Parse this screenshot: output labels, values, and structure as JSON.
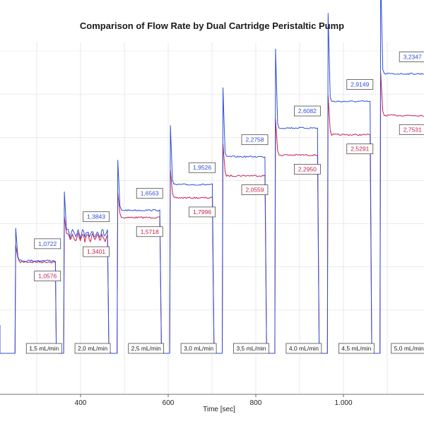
{
  "chart_data": {
    "type": "line",
    "title": "Comparison of Flow Rate by Dual Cartridge Peristaltic Pump",
    "xlabel": "Time [sec]",
    "ylabel": "",
    "x_ticks": [
      {
        "value": 400,
        "label": "400"
      },
      {
        "value": 600,
        "label": "600"
      },
      {
        "value": 800,
        "label": "800"
      },
      {
        "value": 1000,
        "label": "1.000"
      }
    ],
    "xlim": [
      233,
      1190
    ],
    "ylim": [
      0,
      3.75
    ],
    "grid": true,
    "colors": {
      "blue": "#2f4fd8",
      "red": "#c8204a",
      "label_box_border": "#333333"
    },
    "series": [
      {
        "color": "blue",
        "segments": [
          {
            "start": 252,
            "end": 343,
            "value": 1.0722
          },
          {
            "start": 363,
            "end": 463,
            "value": 1.3843
          },
          {
            "start": 485,
            "end": 583,
            "value": 1.6563
          },
          {
            "start": 605,
            "end": 703,
            "value": 1.9526
          },
          {
            "start": 725,
            "end": 823,
            "value": 2.2758
          },
          {
            "start": 845,
            "end": 943,
            "value": 2.6082
          },
          {
            "start": 965,
            "end": 1063,
            "value": 2.9149
          },
          {
            "start": 1085,
            "end": 1190,
            "value": 3.2347
          }
        ]
      },
      {
        "color": "red",
        "segments": [
          {
            "start": 252,
            "end": 343,
            "value": 1.0576
          },
          {
            "start": 363,
            "end": 463,
            "value": 1.3401
          },
          {
            "start": 485,
            "end": 583,
            "value": 1.5718
          },
          {
            "start": 605,
            "end": 703,
            "value": 1.7996
          },
          {
            "start": 725,
            "end": 823,
            "value": 2.0559
          },
          {
            "start": 845,
            "end": 943,
            "value": 2.295
          },
          {
            "start": 965,
            "end": 1063,
            "value": 2.5291
          },
          {
            "start": 1085,
            "end": 1190,
            "value": 2.7531
          }
        ]
      }
    ],
    "value_labels": {
      "blue": [
        "1,0722",
        "1,3843",
        "1,6563",
        "1,9526",
        "2,2758",
        "2,6082",
        "2,9149",
        "3,2347"
      ],
      "red": [
        "1,0576",
        "1,3401",
        "1,5718",
        "1,7996",
        "2,0559",
        "2,2950",
        "2,5291",
        "2,7531"
      ]
    },
    "annotations": [
      "1,5 mL/min",
      "2,0 mL/min",
      "2,5 mL/min",
      "3,0 mL/min",
      "3,5 mL/min",
      "4,0 mL/min",
      "4,5 mL/min",
      "5,0 mL/min"
    ]
  }
}
